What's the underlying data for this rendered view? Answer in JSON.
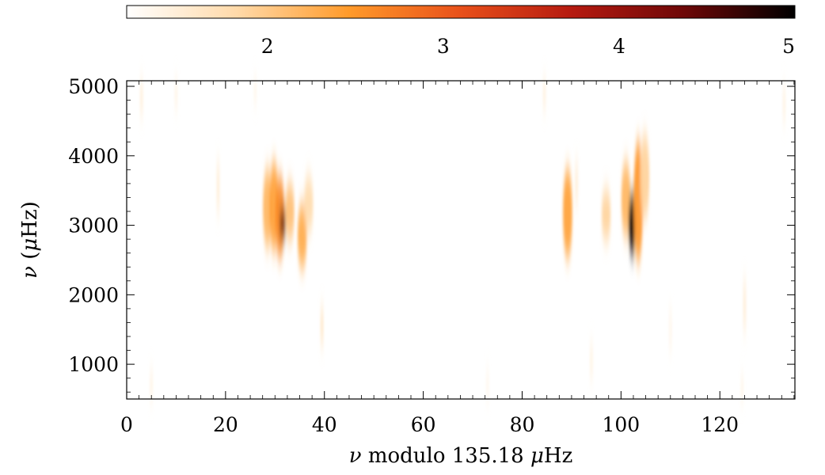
{
  "chart_data": {
    "type": "heatmap",
    "title": "",
    "xlabel_symbol": "ν",
    "xlabel_text": "modulo 135.18",
    "xlabel_unit_mu": "μ",
    "xlabel_unit": "Hz",
    "ylabel_symbol": "ν",
    "ylabel_unit_mu": "μ",
    "ylabel_unit": "Hz",
    "xlim": [
      0,
      135.18
    ],
    "ylim": [
      500,
      5080
    ],
    "x_ticks": [
      0,
      20,
      40,
      60,
      80,
      100,
      120
    ],
    "x_tick_labels": [
      "0",
      "20",
      "40",
      "60",
      "80",
      "100",
      "120"
    ],
    "y_ticks": [
      1000,
      2000,
      3000,
      4000,
      5000
    ],
    "y_tick_labels": [
      "1000",
      "2000",
      "3000",
      "4000",
      "5000"
    ],
    "colorbar": {
      "range": [
        1.2,
        5
      ],
      "ticks": [
        2,
        3,
        4,
        5
      ],
      "tick_labels": [
        "2",
        "3",
        "4",
        "5"
      ],
      "colormap": [
        "#ffffff",
        "#ffd9a8",
        "#ff9a2a",
        "#e8501a",
        "#b51a10",
        "#6e0808",
        "#000000"
      ]
    },
    "ridges": [
      {
        "x": 28.5,
        "y0": 2700,
        "y1": 3800,
        "value": 2.2
      },
      {
        "x": 29.8,
        "y0": 2650,
        "y1": 3900,
        "value": 2.4
      },
      {
        "x": 31.0,
        "y0": 2550,
        "y1": 3700,
        "value": 2.6
      },
      {
        "x": 31.6,
        "y0": 2850,
        "y1": 3200,
        "value": 4.6
      },
      {
        "x": 33.0,
        "y0": 2800,
        "y1": 3600,
        "value": 2.1
      },
      {
        "x": 35.5,
        "y0": 2400,
        "y1": 3300,
        "value": 2.3
      },
      {
        "x": 36.8,
        "y0": 2900,
        "y1": 3700,
        "value": 1.8
      },
      {
        "x": 89.2,
        "y0": 2550,
        "y1": 3800,
        "value": 2.4
      },
      {
        "x": 97.0,
        "y0": 2800,
        "y1": 3500,
        "value": 1.9
      },
      {
        "x": 101.0,
        "y0": 2850,
        "y1": 3900,
        "value": 2.2
      },
      {
        "x": 102.3,
        "y0": 2600,
        "y1": 3450,
        "value": 4.9
      },
      {
        "x": 103.5,
        "y0": 2500,
        "y1": 4200,
        "value": 2.5
      },
      {
        "x": 104.8,
        "y0": 3100,
        "y1": 4300,
        "value": 1.9
      }
    ],
    "noise_streaks": [
      {
        "x": 3.0,
        "y0": 4600,
        "y1": 5080,
        "value": 1.6
      },
      {
        "x": 10.0,
        "y0": 4700,
        "y1": 5080,
        "value": 1.5
      },
      {
        "x": 18.5,
        "y0": 3200,
        "y1": 3900,
        "value": 1.6
      },
      {
        "x": 39.5,
        "y0": 1300,
        "y1": 1800,
        "value": 1.8
      },
      {
        "x": 26.0,
        "y0": 4800,
        "y1": 5080,
        "value": 1.5
      },
      {
        "x": 84.5,
        "y0": 4700,
        "y1": 5080,
        "value": 1.6
      },
      {
        "x": 91.0,
        "y0": 3300,
        "y1": 3900,
        "value": 1.6
      },
      {
        "x": 94.0,
        "y0": 800,
        "y1": 1300,
        "value": 1.5
      },
      {
        "x": 125.0,
        "y0": 1500,
        "y1": 2200,
        "value": 1.6
      },
      {
        "x": 124.5,
        "y0": 500,
        "y1": 800,
        "value": 1.5
      },
      {
        "x": 110.0,
        "y0": 1200,
        "y1": 1800,
        "value": 1.4
      },
      {
        "x": 5.0,
        "y0": 500,
        "y1": 900,
        "value": 1.5
      },
      {
        "x": 73.0,
        "y0": 500,
        "y1": 900,
        "value": 1.4
      },
      {
        "x": 133.0,
        "y0": 4500,
        "y1": 5000,
        "value": 1.5
      }
    ]
  }
}
